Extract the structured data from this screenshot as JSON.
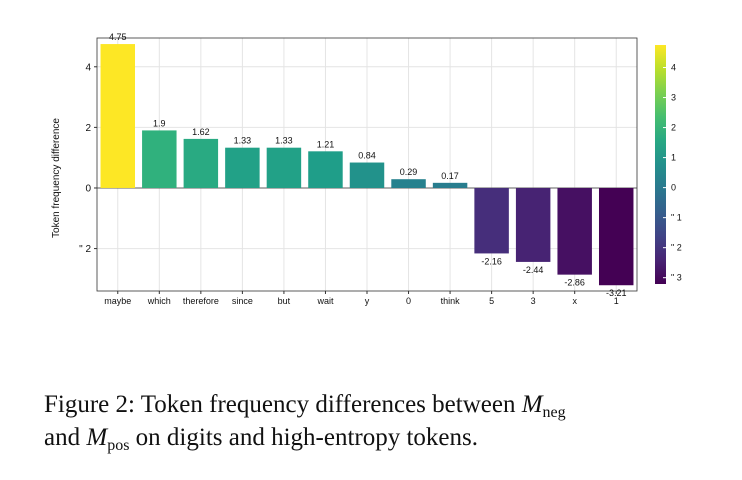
{
  "chart_data": {
    "type": "bar",
    "categories": [
      "maybe",
      "which",
      "therefore",
      "since",
      "but",
      "wait",
      "y",
      "0",
      "think",
      "5",
      "3",
      "x",
      "1"
    ],
    "values": [
      4.75,
      1.9,
      1.62,
      1.33,
      1.33,
      1.21,
      0.84,
      0.29,
      0.17,
      -2.16,
      -2.44,
      -2.86,
      -3.21
    ],
    "value_labels": [
      "4.75",
      "1.9",
      "1.62",
      "1.33",
      "1.33",
      "1.21",
      "0.84",
      "0.29",
      "0.17",
      "-2.16",
      "-2.44",
      "-2.86",
      "-3.21"
    ],
    "xlabel": "",
    "ylabel": "Token frequency difference",
    "ylim": [
      -3.4,
      4.95
    ],
    "yticks": [
      4,
      2,
      0,
      -2
    ],
    "ytick_labels": [
      "4",
      "2",
      "0",
      "\" 2"
    ],
    "grid": true,
    "colormap": "viridis",
    "colorbar": {
      "range": [
        -3.21,
        4.75
      ],
      "ticks": [
        4,
        3,
        2,
        1,
        0,
        -1,
        -2,
        -3
      ],
      "tick_labels": [
        "4",
        "3",
        "2",
        "1",
        "0",
        "\" 1",
        "\" 2",
        "\" 3"
      ]
    }
  },
  "caption": {
    "prefix": "Figure 2: Token frequency differences between ",
    "m1": "M",
    "m1_sub": "neg",
    "line2_prefix": "and ",
    "m2": "M",
    "m2_sub": "pos",
    "suffix": " on digits and high-entropy tokens."
  }
}
